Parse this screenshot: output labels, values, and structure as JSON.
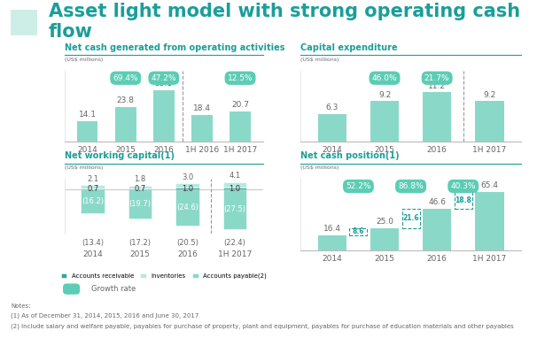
{
  "title": "Asset light model with strong operating cash flow",
  "chart_data": [
    {
      "type": "bar",
      "title": "Net cash generated from operating activities",
      "subtitle": "(US$ millions)",
      "categories": [
        "2014",
        "2015",
        "2016",
        "1H 2016",
        "1H 2017"
      ],
      "values": [
        14.1,
        23.8,
        35.1,
        18.4,
        20.7
      ],
      "color": "#8ad9c8",
      "data_labels": true,
      "tick_labels": "x",
      "ylim": [
        0,
        48
      ],
      "yticks": [],
      "growth": [
        {
          "from": "2014",
          "to": "2015",
          "label": "69.4%"
        },
        {
          "from": "2015",
          "to": "2016",
          "label": "47.2%"
        },
        {
          "from": "1H 2016",
          "to": "1H 2017",
          "label": "12.5%"
        }
      ]
    },
    {
      "type": "bar",
      "title": "Capital expenditure",
      "subtitle": "(US$ millions)",
      "categories": [
        "2014",
        "2015",
        "2016",
        "1H 2017"
      ],
      "values": [
        6.3,
        9.2,
        11.2,
        9.2
      ],
      "color": "#8ad9c8",
      "data_labels": true,
      "tick_labels": "x",
      "ylim": [
        0,
        16
      ],
      "yticks": [],
      "growth": [
        {
          "from": "2014",
          "to": "2015",
          "label": "46.0%"
        },
        {
          "from": "2015",
          "to": "2016",
          "label": "21.7%"
        }
      ]
    },
    {
      "type": "bar",
      "stacked": true,
      "title": "Net working capital(1)",
      "subtitle": "(US$ millions)",
      "categories": [
        "2014",
        "2015",
        "2016",
        "1H 2017"
      ],
      "series": [
        {
          "name": "Accounts receivable",
          "color": "#2ba89b",
          "values": [
            0.7,
            0.7,
            1.0,
            1.0
          ]
        },
        {
          "name": "Inventories",
          "color": "#b8e9dd",
          "values": [
            2.1,
            1.8,
            3.0,
            4.1
          ]
        },
        {
          "name": "Accounts payable(2)",
          "color": "#8ad9c8",
          "values": [
            -16.2,
            -19.7,
            -24.6,
            -27.5
          ],
          "value_labels": [
            "(16.2)",
            "(19.7)",
            "(24.6)",
            "(27.5)"
          ]
        }
      ],
      "totals": {
        "values": [
          -13.4,
          -17.2,
          -20.5,
          -22.4
        ],
        "value_labels": [
          "(13.4)",
          "(17.2)",
          "(20.5)",
          "(22.4)"
        ]
      },
      "legend": "lower center",
      "data_labels": true,
      "tick_labels": "x",
      "ylim": [
        -30,
        7
      ],
      "yticks": []
    },
    {
      "type": "bar",
      "title": "Net cash position(1)",
      "subtitle": "(US$ millions)",
      "categories": [
        "2014",
        "2015",
        "2016",
        "1H 2017"
      ],
      "values": [
        16.4,
        25.0,
        46.6,
        65.4
      ],
      "color": "#8ad9c8",
      "data_labels": true,
      "tick_labels": "x",
      "ylim": [
        0,
        80
      ],
      "yticks": [],
      "increments": [
        {
          "from": "2014",
          "to": "2015",
          "value": 8.6
        },
        {
          "from": "2015",
          "to": "2016",
          "value": 21.6
        },
        {
          "from": "2016",
          "to": "1H 2017",
          "value": 18.8
        }
      ],
      "growth": [
        {
          "from": "2014",
          "to": "2015",
          "label": "52.2%"
        },
        {
          "from": "2015",
          "to": "2016",
          "label": "86.8%"
        },
        {
          "from": "2016",
          "to": "1H 2017",
          "label": "40.3%"
        }
      ]
    }
  ],
  "growth_legend": {
    "label": "Growth rate",
    "color": "#5ccdb4"
  },
  "notes": {
    "heading": "Notes:",
    "items": [
      "(1) As of December 31, 2014, 2015, 2016 and June 30, 2017",
      "(2) Include salary and welfare payable, payables for purchase of property, plant and equipment, payables for purchase of education materials and other payables"
    ]
  }
}
